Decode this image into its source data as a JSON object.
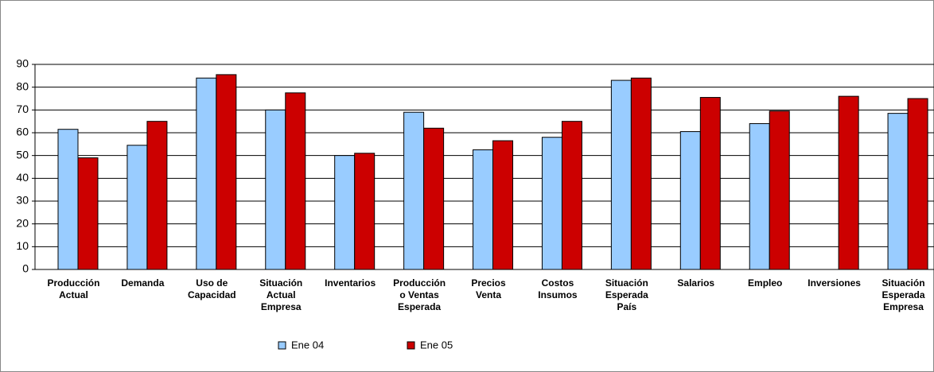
{
  "chart_data": {
    "type": "bar",
    "categories": [
      "Producción\nActual",
      "Demanda",
      "Uso de\nCapacidad",
      "Situación\nActual\nEmpresa",
      "Inventarios",
      "Producción\no Ventas\nEsperada",
      "Precios\nVenta",
      "Costos\nInsumos",
      "Situación\nEsperada\nPaís",
      "Salarios",
      "Empleo",
      "Inversiones",
      "Situación\nEsperada\nEmpresa"
    ],
    "series": [
      {
        "name": "Ene 04",
        "color": "#99ccff",
        "values": [
          61.5,
          54.5,
          84,
          70,
          50,
          69,
          52.5,
          58,
          83,
          60.5,
          64,
          null,
          68.5
        ]
      },
      {
        "name": "Ene 05",
        "color": "#cc0000",
        "values": [
          49,
          65,
          85.5,
          77.5,
          51,
          62,
          56.5,
          65,
          84,
          75.5,
          69.5,
          76,
          75
        ]
      }
    ],
    "ylim": [
      0,
      90
    ],
    "yticks": [
      0,
      10,
      20,
      30,
      40,
      50,
      60,
      70,
      80,
      90
    ],
    "grid": true,
    "legend": "bottom"
  }
}
